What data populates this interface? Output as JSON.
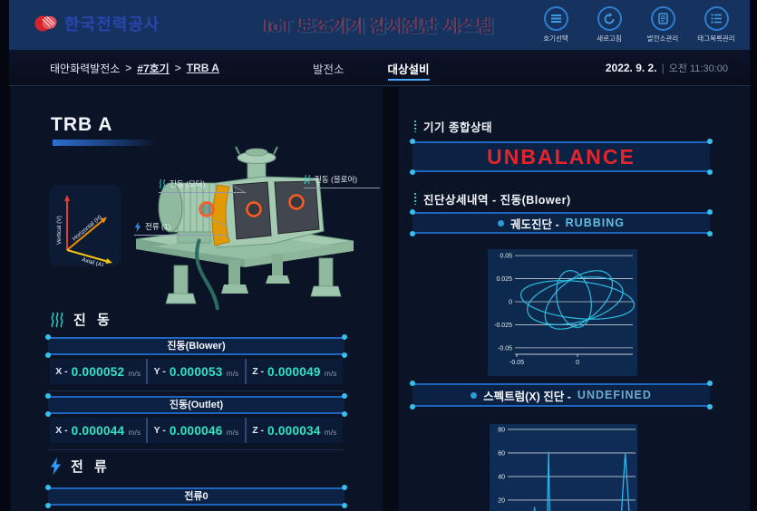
{
  "header": {
    "logo": "한국전력공사",
    "title": "IoT 보조기기 감시진단 시스템",
    "actions": [
      {
        "label": "호기선택"
      },
      {
        "label": "새로고침"
      },
      {
        "label": "발전소관리"
      },
      {
        "label": "태그목록관리"
      }
    ]
  },
  "nav": {
    "breadcrumb": {
      "plant": "태안화력발전소",
      "sep1": ">",
      "unit": "#7호기",
      "sep2": ">",
      "equipment": "TRB A"
    },
    "tabs": [
      {
        "label": "발전소"
      },
      {
        "label": "대상설비"
      }
    ],
    "date": "2022. 9. 2.",
    "divider": "|",
    "time": "오전 11:30:00"
  },
  "left": {
    "title": "TRB A",
    "axes": {
      "vertical": "Vertical (V)",
      "horizontal": "Horizontal (H)",
      "axial": "Axial (A)"
    },
    "machine_labels": {
      "motor": "진동 (모터)",
      "blower": "진동 (블로어)",
      "current": "전류 (1)"
    },
    "vibration": {
      "title": "진 동",
      "panels": [
        {
          "title": "진동(Blower)",
          "values": [
            {
              "axis": "X -",
              "value": "0.000052",
              "unit": "m/s"
            },
            {
              "axis": "Y -",
              "value": "0.000053",
              "unit": "m/s"
            },
            {
              "axis": "Z -",
              "value": "0.000049",
              "unit": "m/s"
            }
          ]
        },
        {
          "title": "진동(Outlet)",
          "values": [
            {
              "axis": "X -",
              "value": "0.000044",
              "unit": "m/s"
            },
            {
              "axis": "Y -",
              "value": "0.000046",
              "unit": "m/s"
            },
            {
              "axis": "Z -",
              "value": "0.000034",
              "unit": "m/s"
            }
          ]
        }
      ]
    },
    "current": {
      "title": "전 류",
      "panel_title": "전류0"
    }
  },
  "right": {
    "status": {
      "title": "기기 종합상태",
      "value": "UNBALANCE",
      "color": "#e5252c"
    },
    "detail": {
      "title": "진단상세내역 - 진동(Blower)",
      "orbit_label": "궤도진단 -",
      "orbit_result": "RUBBING",
      "spectrum_label": "스펙트럼(X) 진단 -",
      "spectrum_result": "UNDEFINED"
    }
  },
  "chart_data": [
    {
      "type": "line",
      "name": "orbit-diagnosis",
      "xlim": [
        -0.0515,
        0.0455
      ],
      "ylim": [
        -0.055,
        0.055
      ],
      "xticks": [
        -0.05,
        0
      ],
      "yticks": [
        0.05,
        0.025,
        0,
        -0.025,
        -0.05
      ],
      "grid": "horizontal",
      "legend": "none",
      "bg": "#0d2a4e",
      "line_color": "#2ec3ea",
      "series": [
        {
          "name": "orbit",
          "ellipses": [
            {
              "cx": 0,
              "cy": 0.002,
              "rx": 0.047,
              "ry": 0.02,
              "rot": -8
            },
            {
              "cx": -0.002,
              "cy": 0.001,
              "rx": 0.041,
              "ry": 0.023,
              "rot": 20
            },
            {
              "cx": 0.001,
              "cy": 0.002,
              "rx": 0.037,
              "ry": 0.02,
              "rot": 52
            },
            {
              "cx": -0.003,
              "cy": 0.003,
              "rx": 0.031,
              "ry": 0.014,
              "rot": 97
            }
          ]
        }
      ]
    },
    {
      "type": "line",
      "name": "spectrum-x-diagnosis",
      "xlim": [
        0,
        1
      ],
      "ylim": [
        0,
        83
      ],
      "yticks": [
        80,
        60,
        40,
        20
      ],
      "grid": "horizontal",
      "legend": "none",
      "bg": "#0e2c55",
      "line_color": "#2eb4ec",
      "series": [
        {
          "name": "spectrum",
          "baseline": 1,
          "peaks": [
            {
              "x": 0.21,
              "height": 14,
              "width": 0.018
            },
            {
              "x": 0.32,
              "height": 61,
              "width": 0.02
            },
            {
              "x": 0.92,
              "height": 60,
              "width": 0.07
            }
          ]
        }
      ]
    }
  ]
}
